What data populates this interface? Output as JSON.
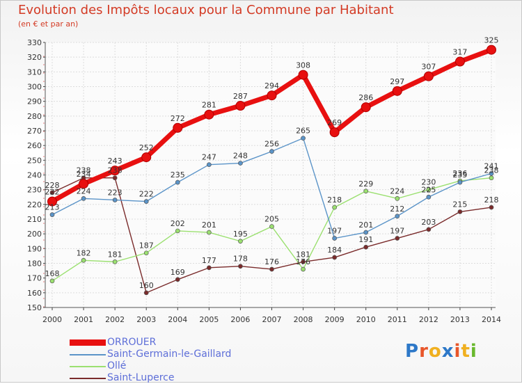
{
  "title": "Evolution des Impôts locaux pour la Commune par Habitant",
  "subtitle": "(en € et par an)",
  "logo": {
    "text": "Proxiti",
    "colors": [
      "#2d78c8",
      "#e8562a",
      "#f0b020",
      "#2d78c8",
      "#e8562a",
      "#f0b020",
      "#69b82d"
    ]
  },
  "chart_data": {
    "type": "line",
    "title": "Evolution des Impôts locaux pour la Commune par Habitant",
    "subtitle": "(en € et par an)",
    "x": [
      "2000",
      "2001",
      "2002",
      "2003",
      "2004",
      "2005",
      "2006",
      "2007",
      "2008",
      "2009",
      "2010",
      "2011",
      "2012",
      "2013",
      "2014"
    ],
    "ylim": [
      150,
      330
    ],
    "yticks": [
      150,
      160,
      170,
      180,
      190,
      200,
      210,
      220,
      230,
      240,
      250,
      260,
      270,
      280,
      290,
      300,
      310,
      320,
      330
    ],
    "grid": true,
    "legend_position": "bottom-left",
    "series": [
      {
        "name": "ORROUER",
        "color": "#e81010",
        "emphasis": true,
        "values": [
          222,
          234,
          243,
          252,
          272,
          281,
          287,
          294,
          308,
          269,
          286,
          297,
          307,
          317,
          325
        ]
      },
      {
        "name": "Saint-Germain-le-Gaillard",
        "color": "#5b94c8",
        "values": [
          213,
          224,
          223,
          222,
          235,
          247,
          248,
          256,
          265,
          197,
          201,
          212,
          225,
          235,
          241
        ]
      },
      {
        "name": "Ollé",
        "color": "#9be070",
        "values": [
          168,
          182,
          181,
          187,
          202,
          201,
          195,
          205,
          176,
          218,
          229,
          224,
          230,
          236,
          238
        ]
      },
      {
        "name": "Saint-Luperce",
        "color": "#7a2b2b",
        "values": [
          228,
          238,
          238,
          160,
          169,
          177,
          178,
          176,
          181,
          184,
          191,
          197,
          203,
          215,
          218
        ]
      }
    ]
  }
}
